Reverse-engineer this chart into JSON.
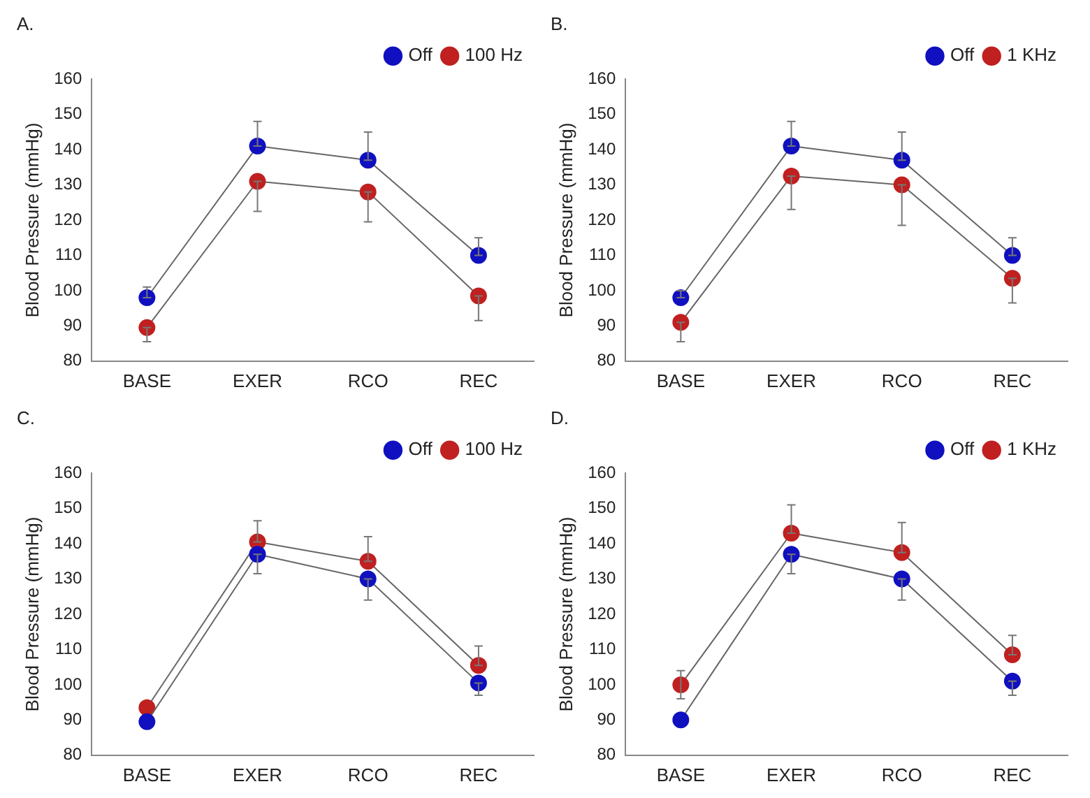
{
  "chart_data": [
    {
      "type": "line",
      "title": "A.",
      "ylabel": "Blood Pressure (mmHg)",
      "categories": [
        "BASE",
        "EXER",
        "RCO",
        "REC"
      ],
      "ylim": [
        80,
        160
      ],
      "yticks": [
        80,
        90,
        100,
        110,
        120,
        130,
        140,
        150,
        160
      ],
      "grid": false,
      "legend": "top right",
      "marker": "circle",
      "line_style": "solid",
      "series": [
        {
          "name": "Off",
          "color": "#1010c0",
          "values": [
            98,
            141,
            137,
            110
          ],
          "errors": [
            [
              98,
              101
            ],
            [
              141,
              148
            ],
            [
              137,
              145
            ],
            [
              110,
              115
            ]
          ]
        },
        {
          "name": "100 Hz",
          "color": "#c02020",
          "values": [
            89.5,
            131,
            128,
            98.5
          ],
          "errors": [
            [
              85.5,
              89.5
            ],
            [
              122.5,
              131
            ],
            [
              119.5,
              128
            ],
            [
              91.5,
              98.5
            ]
          ]
        }
      ]
    },
    {
      "type": "line",
      "title": "B.",
      "ylabel": "Blood Pressure (mmHg)",
      "categories": [
        "BASE",
        "EXER",
        "RCO",
        "REC"
      ],
      "ylim": [
        80,
        160
      ],
      "yticks": [
        80,
        90,
        100,
        110,
        120,
        130,
        140,
        150,
        160
      ],
      "grid": false,
      "legend": "top right",
      "marker": "circle",
      "line_style": "solid",
      "series": [
        {
          "name": "Off",
          "color": "#1010c0",
          "values": [
            98,
            141,
            137,
            110
          ],
          "errors": [
            [
              98,
              100
            ],
            [
              141,
              148
            ],
            [
              137,
              145
            ],
            [
              110,
              115
            ]
          ]
        },
        {
          "name": "1 KHz",
          "color": "#c02020",
          "values": [
            91,
            132.5,
            130,
            103.5
          ],
          "errors": [
            [
              85.5,
              91
            ],
            [
              123,
              132.5
            ],
            [
              118.5,
              130
            ],
            [
              96.5,
              103.5
            ]
          ]
        }
      ]
    },
    {
      "type": "line",
      "title": "C.",
      "ylabel": "Blood Pressure (mmHg)",
      "categories": [
        "BASE",
        "EXER",
        "RCO",
        "REC"
      ],
      "ylim": [
        80,
        160
      ],
      "yticks": [
        80,
        90,
        100,
        110,
        120,
        130,
        140,
        150,
        160
      ],
      "grid": false,
      "legend": "top right",
      "marker": "circle",
      "line_style": "solid",
      "series": [
        {
          "name": "Off",
          "color": "#1010c0",
          "values": [
            89.5,
            137,
            130,
            100.5
          ],
          "errors": [
            null,
            [
              131.5,
              137
            ],
            [
              124,
              130
            ],
            [
              97,
              100.5
            ]
          ]
        },
        {
          "name": "100 Hz",
          "color": "#c02020",
          "values": [
            93.5,
            140.5,
            135,
            105.5
          ],
          "errors": [
            null,
            [
              140.5,
              146.5
            ],
            [
              135,
              142
            ],
            [
              105.5,
              111
            ]
          ]
        }
      ]
    },
    {
      "type": "line",
      "title": "D.",
      "ylabel": "Blood Pressure (mmHg)",
      "categories": [
        "BASE",
        "EXER",
        "RCO",
        "REC"
      ],
      "ylim": [
        80,
        160
      ],
      "yticks": [
        80,
        90,
        100,
        110,
        120,
        130,
        140,
        150,
        160
      ],
      "grid": false,
      "legend": "top right",
      "marker": "circle",
      "line_style": "solid",
      "series": [
        {
          "name": "Off",
          "color": "#1010c0",
          "values": [
            90,
            137,
            130,
            101
          ],
          "errors": [
            null,
            [
              131.5,
              137
            ],
            [
              124,
              130
            ],
            [
              97,
              101
            ]
          ]
        },
        {
          "name": "1 KHz",
          "color": "#c02020",
          "values": [
            100,
            143,
            137.5,
            108.5
          ],
          "errors": [
            [
              96,
              104
            ],
            [
              143,
              151
            ],
            [
              137.5,
              146
            ],
            [
              108.5,
              114
            ]
          ]
        }
      ]
    }
  ]
}
